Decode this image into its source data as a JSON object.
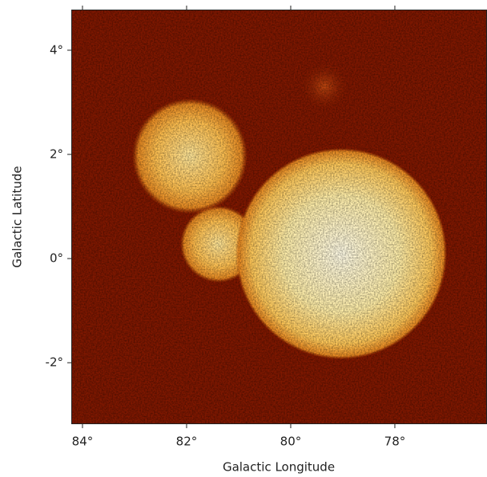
{
  "chart_data": {
    "type": "image",
    "xlabel": "Galactic Longitude",
    "ylabel": "Galactic Latitude",
    "xlim": [
      84.215,
      76.23
    ],
    "ylim": [
      -3.18,
      4.78
    ],
    "xticks": [
      {
        "value": 84,
        "label": "84°"
      },
      {
        "value": 82,
        "label": "82°"
      },
      {
        "value": 80,
        "label": "80°"
      },
      {
        "value": 78,
        "label": "78°"
      }
    ],
    "yticks": [
      {
        "value": 4,
        "label": "4°"
      },
      {
        "value": 2,
        "label": "2°"
      },
      {
        "value": 0,
        "label": "0°"
      },
      {
        "value": -2,
        "label": "-2°"
      }
    ]
  }
}
